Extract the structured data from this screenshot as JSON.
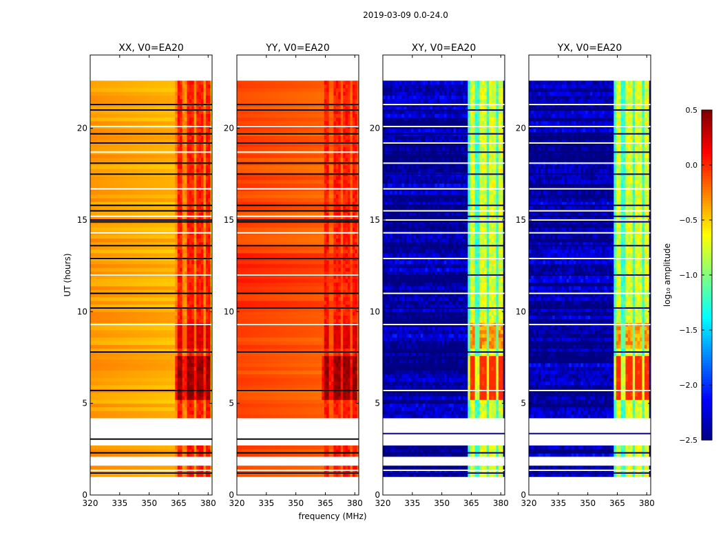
{
  "figure": {
    "suptitle": "2019-03-09 0.0-24.0",
    "xlabel": "frequency (MHz)",
    "ylabel": "UT (hours)",
    "colorbar_label": "log₁₀ amplitude"
  },
  "chart_data": {
    "type": "heatmap",
    "title": "2019-03-09 0.0-24.0",
    "xlabel": "frequency (MHz)",
    "ylabel": "UT (hours)",
    "xlim": [
      320,
      382
    ],
    "ylim": [
      0,
      24
    ],
    "xticks": [
      320,
      335,
      350,
      365,
      380
    ],
    "yticks": [
      0,
      5,
      10,
      15,
      20
    ],
    "data_time_range": [
      4.2,
      22.5
    ],
    "early_segments_hours": [
      [
        1.0,
        1.5
      ],
      [
        2.1,
        2.7
      ]
    ],
    "missing_rows_hours": [
      1.2,
      1.35,
      2.3,
      3.05,
      3.35,
      5.7,
      7.8,
      9.3,
      10.2,
      11.0,
      12.0,
      12.9,
      13.6,
      14.3,
      14.9,
      15.0,
      15.2,
      15.5,
      15.8,
      16.7,
      17.5,
      18.1,
      18.7,
      19.2,
      19.7,
      20.1,
      21.0,
      21.3
    ],
    "rfi_band_MHz": [
      363,
      381
    ],
    "rfi_channels_MHz": [
      365,
      370,
      375,
      380
    ],
    "strong_rfi_hours": [
      5.2,
      7.6
    ],
    "panels": [
      {
        "name": "XX, V0=EA20",
        "baseline_log_amp": -0.45,
        "rfi_peak_log_amp": 0.5
      },
      {
        "name": "YY, V0=EA20",
        "baseline_log_amp": -0.2,
        "rfi_peak_log_amp": 0.5
      },
      {
        "name": "XY, V0=EA20",
        "baseline_log_amp": -2.4,
        "rfi_peak_log_amp": 0.0
      },
      {
        "name": "YX, V0=EA20",
        "baseline_log_amp": -2.4,
        "rfi_peak_log_amp": 0.0
      }
    ],
    "colorbar": {
      "label": "log₁₀ amplitude",
      "range": [
        -2.5,
        0.5
      ],
      "ticks": [
        "0.5",
        "0.0",
        "−0.5",
        "−1.0",
        "−1.5",
        "−2.0",
        "−2.5"
      ],
      "colormap": "jet"
    }
  }
}
